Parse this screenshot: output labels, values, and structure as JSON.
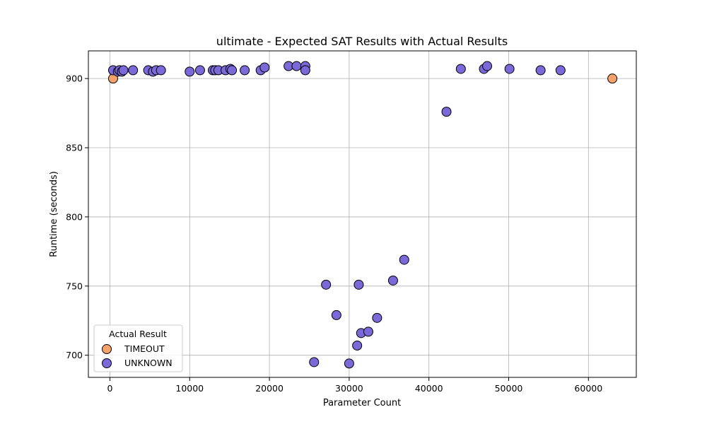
{
  "chart_data": {
    "type": "scatter",
    "title": "ultimate - Expected SAT Results with Actual Results",
    "xlabel": "Parameter Count",
    "ylabel": "Runtime (seconds)",
    "xlim": [
      -2700,
      66000
    ],
    "ylim": [
      684,
      920
    ],
    "xticks": [
      0,
      10000,
      20000,
      30000,
      40000,
      50000,
      60000
    ],
    "xtick_labels": [
      "0",
      "10000",
      "20000",
      "30000",
      "40000",
      "50000",
      "60000"
    ],
    "yticks": [
      700,
      750,
      800,
      850,
      900
    ],
    "ytick_labels": [
      "700",
      "750",
      "800",
      "850",
      "900"
    ],
    "grid": true,
    "legend": {
      "title": "Actual Result",
      "placement": "lower-left",
      "entries": [
        "TIMEOUT",
        "UNKNOWN"
      ]
    },
    "series": [
      {
        "name": "TIMEOUT",
        "color": "#f4a26a",
        "points": [
          [
            400,
            900
          ],
          [
            63000,
            900
          ]
        ]
      },
      {
        "name": "UNKNOWN",
        "color": "#7b68d9",
        "points": [
          [
            400,
            906
          ],
          [
            1000,
            905
          ],
          [
            1200,
            906
          ],
          [
            1500,
            905
          ],
          [
            1700,
            906
          ],
          [
            2900,
            906
          ],
          [
            4800,
            906
          ],
          [
            5400,
            905
          ],
          [
            5800,
            906
          ],
          [
            6400,
            906
          ],
          [
            10000,
            905
          ],
          [
            11300,
            906
          ],
          [
            12900,
            906
          ],
          [
            13200,
            906
          ],
          [
            13600,
            906
          ],
          [
            14500,
            906
          ],
          [
            15100,
            907
          ],
          [
            15300,
            906
          ],
          [
            16900,
            906
          ],
          [
            18900,
            906
          ],
          [
            19400,
            908
          ],
          [
            22400,
            909
          ],
          [
            23400,
            909
          ],
          [
            24500,
            909
          ],
          [
            24500,
            906
          ],
          [
            42200,
            876
          ],
          [
            44000,
            907
          ],
          [
            46900,
            907
          ],
          [
            47300,
            909
          ],
          [
            50100,
            907
          ],
          [
            54000,
            906
          ],
          [
            56500,
            906
          ],
          [
            25600,
            695
          ],
          [
            27100,
            751
          ],
          [
            28400,
            729
          ],
          [
            30000,
            694
          ],
          [
            31000,
            707
          ],
          [
            31200,
            751
          ],
          [
            31500,
            716
          ],
          [
            32400,
            717
          ],
          [
            33500,
            727
          ],
          [
            35500,
            754
          ],
          [
            36900,
            769
          ]
        ]
      }
    ]
  }
}
